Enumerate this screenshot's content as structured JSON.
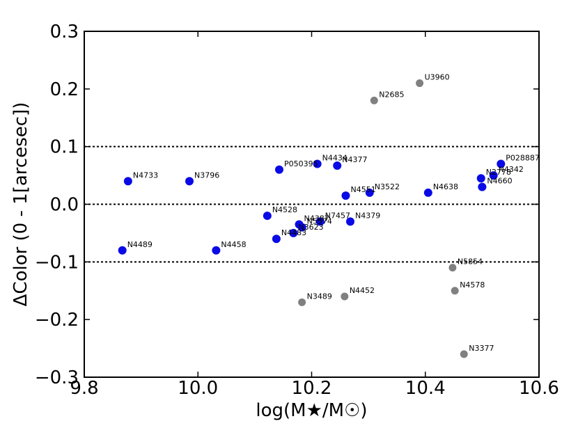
{
  "chart_data": {
    "type": "scatter",
    "title": "",
    "xlabel": "log(M★/M☉)",
    "ylabel": "ΔColor (0 - 1[arcesec])",
    "xlim": [
      9.8,
      10.6
    ],
    "ylim": [
      -0.3,
      0.3
    ],
    "xticks": [
      9.8,
      10.0,
      10.2,
      10.4,
      10.6
    ],
    "xtick_labels": [
      "9.8",
      "10.0",
      "10.2",
      "10.4",
      "10.6"
    ],
    "yticks": [
      -0.3,
      -0.2,
      -0.1,
      0.0,
      0.1,
      0.2,
      0.3
    ],
    "ytick_labels": [
      "−0.3",
      "−0.2",
      "−0.1",
      "0.0",
      "0.1",
      "0.2",
      "0.3"
    ],
    "reference_lines": [
      0.1,
      0.0,
      -0.1
    ],
    "colors": {
      "blue": "#0a0ae6",
      "gray": "#808080"
    },
    "points": [
      {
        "label": "U3960",
        "x": 10.39,
        "y": 0.21,
        "color": "gray"
      },
      {
        "label": "N2685",
        "x": 10.31,
        "y": 0.18,
        "color": "gray"
      },
      {
        "label": "P028887",
        "x": 10.533,
        "y": 0.07,
        "color": "blue"
      },
      {
        "label": "N4342",
        "x": 10.52,
        "y": 0.05,
        "color": "blue"
      },
      {
        "label": "N2778",
        "x": 10.498,
        "y": 0.045,
        "color": "blue"
      },
      {
        "label": "N4660",
        "x": 10.5,
        "y": 0.03,
        "color": "blue"
      },
      {
        "label": "N4638",
        "x": 10.405,
        "y": 0.02,
        "color": "blue"
      },
      {
        "label": "N3522",
        "x": 10.302,
        "y": 0.02,
        "color": "blue"
      },
      {
        "label": "N4551",
        "x": 10.26,
        "y": 0.015,
        "color": "blue"
      },
      {
        "label": "N4377",
        "x": 10.245,
        "y": 0.067,
        "color": "blue"
      },
      {
        "label": "N4434",
        "x": 10.21,
        "y": 0.07,
        "color": "blue"
      },
      {
        "label": "P050395",
        "x": 10.143,
        "y": 0.06,
        "color": "blue"
      },
      {
        "label": "N4733",
        "x": 9.877,
        "y": 0.04,
        "color": "blue"
      },
      {
        "label": "N3796",
        "x": 9.985,
        "y": 0.04,
        "color": "blue"
      },
      {
        "label": "N4528",
        "x": 10.122,
        "y": -0.02,
        "color": "blue"
      },
      {
        "label": "N4379",
        "x": 10.268,
        "y": -0.03,
        "color": "blue"
      },
      {
        "label": "N7457",
        "x": 10.215,
        "y": -0.03,
        "color": "blue"
      },
      {
        "label": "N4387",
        "x": 10.178,
        "y": -0.035,
        "color": "blue"
      },
      {
        "label": "N5574",
        "x": 10.183,
        "y": -0.04,
        "color": "blue"
      },
      {
        "label": "N3623",
        "x": 10.168,
        "y": -0.05,
        "color": "blue"
      },
      {
        "label": "N4483",
        "x": 10.138,
        "y": -0.06,
        "color": "blue"
      },
      {
        "label": "N4489",
        "x": 9.867,
        "y": -0.08,
        "color": "blue"
      },
      {
        "label": "N4458",
        "x": 10.032,
        "y": -0.08,
        "color": "blue"
      },
      {
        "label": "N5854",
        "x": 10.448,
        "y": -0.11,
        "color": "gray"
      },
      {
        "label": "N4578",
        "x": 10.452,
        "y": -0.15,
        "color": "gray"
      },
      {
        "label": "N4452",
        "x": 10.258,
        "y": -0.16,
        "color": "gray"
      },
      {
        "label": "N3489",
        "x": 10.183,
        "y": -0.17,
        "color": "gray"
      },
      {
        "label": "N3377",
        "x": 10.468,
        "y": -0.26,
        "color": "gray"
      }
    ]
  }
}
